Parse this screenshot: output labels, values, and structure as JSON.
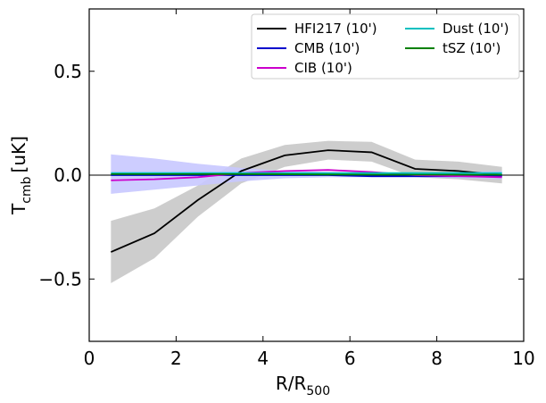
{
  "chart_data": {
    "type": "line",
    "xlabel_main": "R/R",
    "xlabel_sub": "500",
    "ylabel_main": "T",
    "ylabel_sub": "cmb",
    "ylabel_unit": "[uK]",
    "xlim": [
      0,
      10
    ],
    "ylim": [
      -0.8,
      0.8
    ],
    "xticks": [
      0,
      2,
      4,
      6,
      8,
      10
    ],
    "xtick_labels": [
      "0",
      "2",
      "4",
      "6",
      "8",
      "10"
    ],
    "yticks": [
      -0.5,
      0.0,
      0.5
    ],
    "ytick_labels": [
      "−0.5",
      "0.0",
      "0.5"
    ],
    "zero_line": true,
    "legend_position": "top-right",
    "x": [
      0.5,
      1.5,
      2.5,
      3.5,
      4.5,
      5.5,
      6.5,
      7.5,
      8.5,
      9.5
    ],
    "series": [
      {
        "name": "HFI217 (10')",
        "color": "#000000",
        "values": [
          -0.37,
          -0.28,
          -0.12,
          0.02,
          0.095,
          0.12,
          0.11,
          0.03,
          0.02,
          0.0
        ],
        "band_low": [
          -0.52,
          -0.4,
          -0.2,
          -0.04,
          0.04,
          0.075,
          0.065,
          -0.01,
          -0.02,
          -0.04
        ],
        "band_high": [
          -0.22,
          -0.16,
          -0.05,
          0.08,
          0.145,
          0.165,
          0.16,
          0.075,
          0.065,
          0.04
        ],
        "band_color": "#c8c8c8"
      },
      {
        "name": "CMB (10')",
        "color": "#0000cc",
        "values": [
          0.0,
          0.0,
          0.0,
          0.0,
          0.0,
          0.0,
          -0.005,
          -0.005,
          -0.005,
          -0.005
        ],
        "band_low": [
          -0.09,
          -0.07,
          -0.05,
          -0.03,
          -0.015,
          -0.01,
          -0.01,
          -0.01,
          -0.015,
          -0.02
        ],
        "band_high": [
          0.1,
          0.08,
          0.055,
          0.035,
          0.02,
          0.015,
          0.01,
          0.01,
          0.015,
          0.02
        ],
        "band_color": "#c8c8ff"
      },
      {
        "name": "CIB (10')",
        "color": "#cc00cc",
        "values": [
          -0.025,
          -0.02,
          -0.01,
          0.01,
          0.02,
          0.025,
          0.015,
          0.0,
          -0.005,
          -0.01
        ]
      },
      {
        "name": "Dust (10')",
        "color": "#00c0c0",
        "values": [
          0.01,
          0.01,
          0.01,
          0.01,
          0.01,
          0.01,
          0.01,
          0.01,
          0.01,
          0.01
        ]
      },
      {
        "name": "tSZ (10')",
        "color": "#008000",
        "values": [
          0.005,
          0.005,
          0.005,
          0.005,
          0.004,
          0.003,
          0.002,
          0.002,
          0.002,
          0.002
        ]
      }
    ]
  }
}
